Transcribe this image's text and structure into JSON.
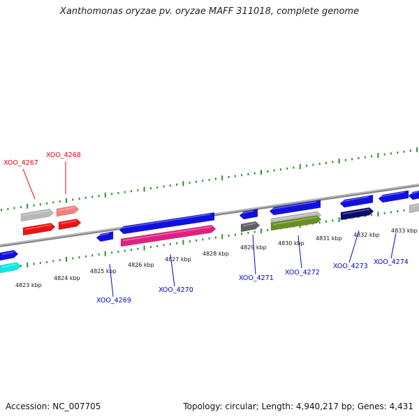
{
  "title": "Xanthomonas oryzae pv. oryzae MAFF 311018, complete genome",
  "footer": {
    "accession": "Accession: NC_007705",
    "summary": "Topology: circular; Length: 4,940,217 bp; Genes: 4,431"
  },
  "ticks": [
    "4823 kbp",
    "4824 kbp",
    "4825 kbp",
    "4826 kbp",
    "4827 kbp",
    "4828 kbp",
    "4829 kbp",
    "4830 kbp",
    "4831 kbp",
    "4832 kbp",
    "4833 kbp"
  ],
  "gene_labels": [
    {
      "name": "XOO_4267",
      "color": "#e8000b"
    },
    {
      "name": "XOO_4268",
      "color": "#e8000b"
    },
    {
      "name": "XOO_4269",
      "color": "#0000cc"
    },
    {
      "name": "XOO_4270",
      "color": "#0000cc"
    },
    {
      "name": "XOO_4271",
      "color": "#0000cc"
    },
    {
      "name": "XOO_4272",
      "color": "#0000cc"
    },
    {
      "name": "XOO_4273",
      "color": "#0000cc"
    },
    {
      "name": "XOO_4274",
      "color": "#0000cc"
    }
  ],
  "colors": {
    "backbone": "#8a8a8a",
    "tick_marks": "#2e8b2e",
    "forward_gene": "#1010e0",
    "red_gene": "#ee1111",
    "light_red_gene": "#f08080",
    "gray_gene": "#b8b8b8",
    "magenta_gene": "#e0207f",
    "dark_gray_gene": "#606060",
    "olive_gene": "#6b8e23",
    "navy_gene": "#0a0a6e",
    "cyan_gene": "#10e8e8"
  }
}
